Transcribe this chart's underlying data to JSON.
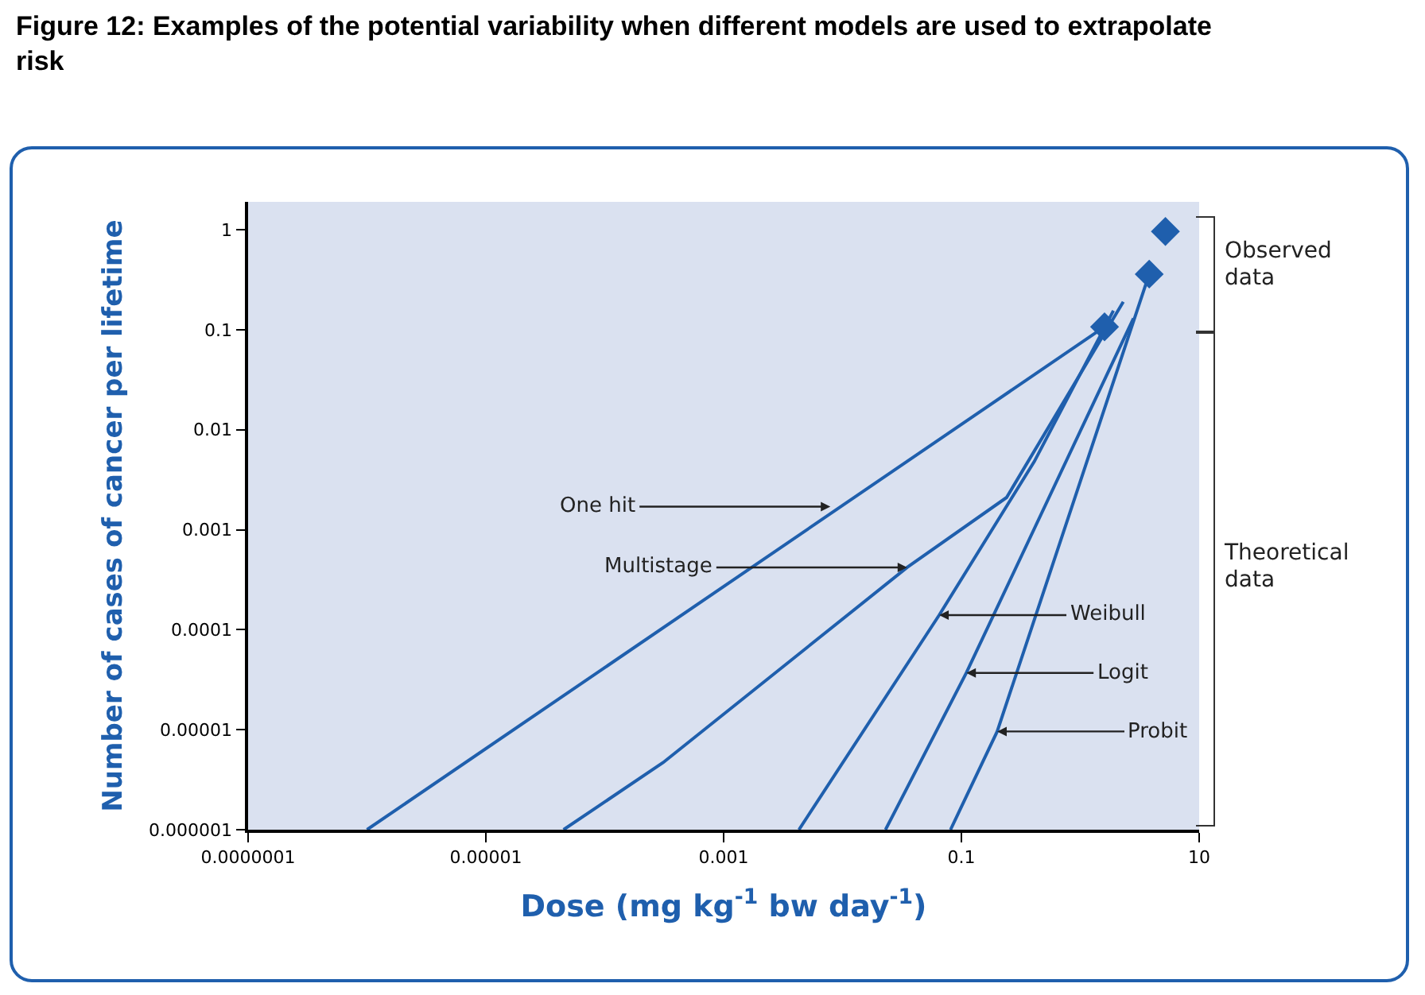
{
  "chart_data": {
    "type": "line",
    "title": "Figure 12: Examples of the potential variability when different models are used to extrapolate risk",
    "xlabel": "Dose (mg kg$^{-1}$ bw day$^{-1}$)",
    "ylabel": "Number of cases of cancer per lifetime",
    "log": "xy",
    "grid": false,
    "line_style": "solid",
    "xlim": [
      1e-07,
      10
    ],
    "ylim": [
      1e-06,
      1.9
    ],
    "xticks": [
      {
        "value": 1e-07,
        "label": "0.0000001"
      },
      {
        "value": 1e-05,
        "label": "0.00001"
      },
      {
        "value": 0.001,
        "label": "0.001"
      },
      {
        "value": 0.1,
        "label": "0.1"
      },
      {
        "value": 10,
        "label": "10"
      }
    ],
    "yticks": [
      {
        "value": 1e-06,
        "label": "0.000001"
      },
      {
        "value": 1e-05,
        "label": "0.00001"
      },
      {
        "value": 0.0001,
        "label": "0.0001"
      },
      {
        "value": 0.001,
        "label": "0.001"
      },
      {
        "value": 0.01,
        "label": "0.01"
      },
      {
        "value": 0.1,
        "label": "0.1"
      },
      {
        "value": 1,
        "label": "1"
      }
    ],
    "series": [
      {
        "type": "line",
        "color": "#1f5fad",
        "x": [
          1e-06,
          1.6
        ],
        "values": [
          1e-06,
          0.107
        ]
      },
      {
        "type": "line",
        "color": "#1f5fad",
        "x": [
          4.5e-05,
          0.00031,
          0.035,
          0.24,
          2.3
        ],
        "values": [
          1e-06,
          4.7e-06,
          0.00042,
          0.0021,
          0.19
        ]
      },
      {
        "type": "line",
        "color": "#1f5fad",
        "x": [
          0.0043,
          0.065,
          0.41,
          1.9
        ],
        "values": [
          1e-06,
          0.00014,
          0.0048,
          0.155
        ]
      },
      {
        "type": "line",
        "color": "#1f5fad",
        "x": [
          0.023,
          0.11,
          2.8
        ],
        "values": [
          1e-06,
          3.7e-05,
          0.13
        ]
      },
      {
        "type": "line",
        "color": "#1f5fad",
        "x": [
          0.081,
          0.2,
          3.8
        ],
        "values": [
          1e-06,
          9.6e-06,
          0.36
        ]
      },
      {
        "type": "scatter",
        "color": "#1f5fad",
        "marker": "diamond",
        "x": [
          1.6,
          3.8,
          5.2
        ],
        "values": [
          0.107,
          0.36,
          0.96
        ]
      }
    ],
    "annotations": [
      {
        "text": "One hit",
        "x": 0.0079,
        "y": 0.0017
      },
      {
        "text": "Multistage",
        "x": 0.035,
        "y": 0.00042
      },
      {
        "text": "Weibull",
        "x": 0.065,
        "y": 0.00014
      },
      {
        "text": "Logit",
        "x": 0.11,
        "y": 3.7e-05
      },
      {
        "text": "Probit",
        "x": 0.2,
        "y": 9.6e-06
      },
      "Observed data",
      "Theoretical data"
    ]
  }
}
